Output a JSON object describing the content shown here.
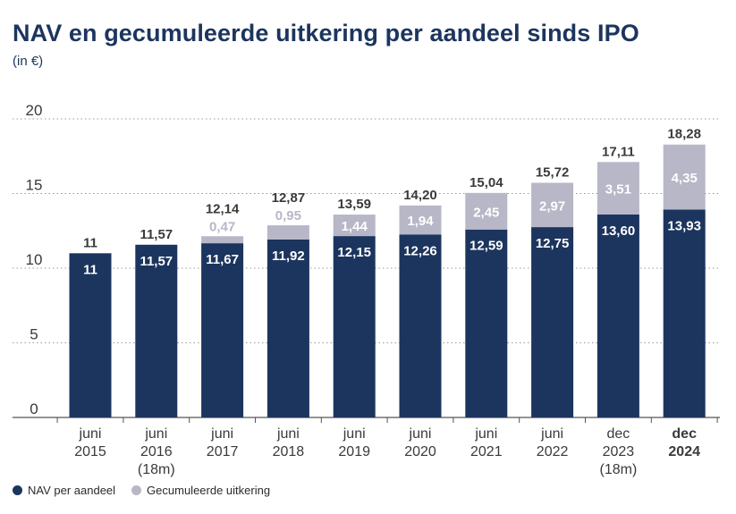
{
  "colors": {
    "nav": "#1c355e",
    "dividend": "#b7b7c7",
    "grid": "#9a9a9a",
    "axis_text": "#3a3a3a",
    "label_dark": "#3a3a3a",
    "label_light": "#ffffff"
  },
  "chart_data": {
    "type": "bar",
    "stacked": true,
    "title": "NAV en gecumuleerde uitkering per aandeel sinds IPO",
    "subtitle": "(in €)",
    "categories": [
      [
        "juni",
        "2015"
      ],
      [
        "juni",
        "2016",
        "(18m)"
      ],
      [
        "juni",
        "2017"
      ],
      [
        "juni",
        "2018"
      ],
      [
        "juni",
        "2019"
      ],
      [
        "juni",
        "2020"
      ],
      [
        "juni",
        "2021"
      ],
      [
        "juni",
        "2022"
      ],
      [
        "dec",
        "2023",
        "(18m)"
      ],
      [
        "dec",
        "2024"
      ]
    ],
    "bold_category_index": 9,
    "series": [
      {
        "name": "NAV per aandeel",
        "values": [
          11,
          11.57,
          11.67,
          11.92,
          12.15,
          12.26,
          12.59,
          12.75,
          13.6,
          13.93
        ],
        "labels": [
          "11",
          "11,57",
          "11,67",
          "11,92",
          "12,15",
          "12,26",
          "12,59",
          "12,75",
          "13,60",
          "13,93"
        ]
      },
      {
        "name": "Gecumuleerde uitkering",
        "values": [
          0,
          0,
          0.47,
          0.95,
          1.44,
          1.94,
          2.45,
          2.97,
          3.51,
          4.35
        ],
        "labels": [
          "",
          "",
          "0,47",
          "0,95",
          "1,44",
          "1,94",
          "2,45",
          "2,97",
          "3,51",
          "4,35"
        ]
      }
    ],
    "totals": [
      "11",
      "11,57",
      "12,14",
      "12,87",
      "13,59",
      "14,20",
      "15,04",
      "15,72",
      "17,11",
      "18,28"
    ],
    "yticks": [
      0,
      5,
      10,
      15,
      20
    ],
    "ylim": [
      0,
      20
    ],
    "grid": true,
    "legend_position": "bottom-left"
  }
}
